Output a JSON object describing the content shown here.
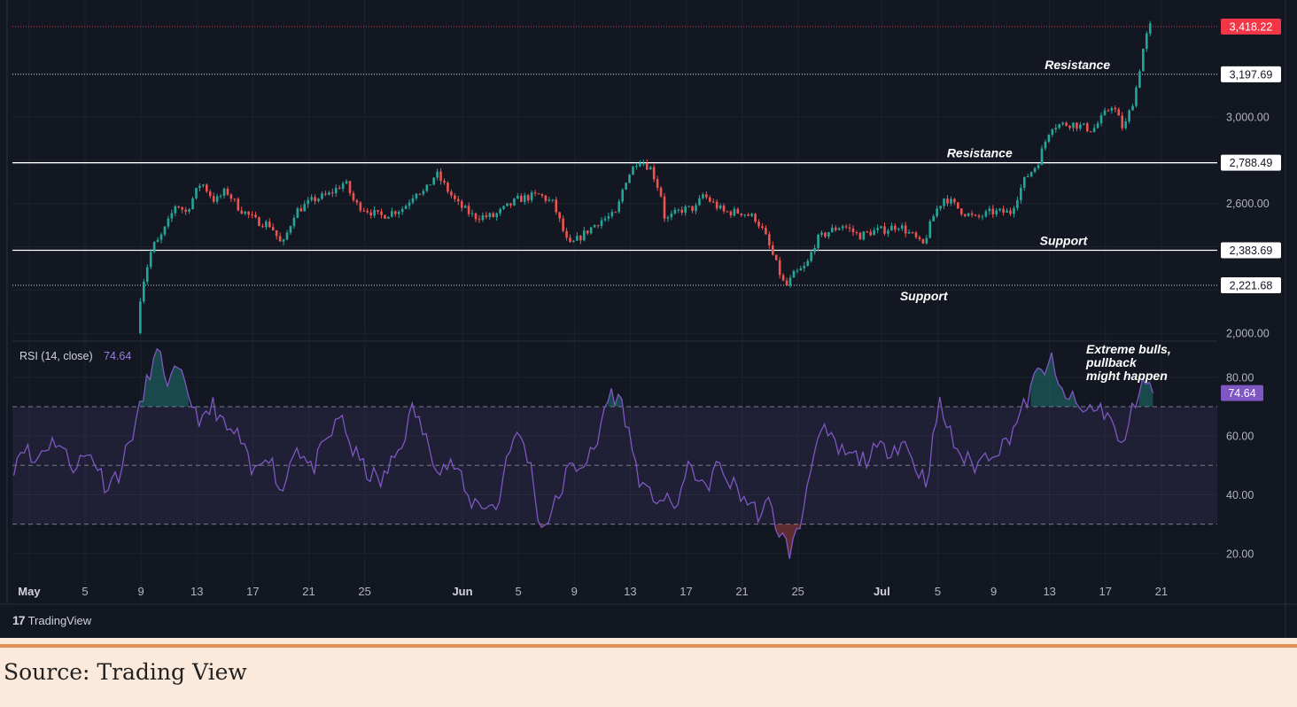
{
  "caption": "Source: Trading View",
  "brand": {
    "logo": "17",
    "name": "TradingView"
  },
  "colors": {
    "background": "#131722",
    "up": "#26a69a",
    "down": "#ef5350",
    "rsi": "#7e57c2",
    "price_tag": "#f23645",
    "rsi_tag": "#7e57c2",
    "caption_bg": "#fbeadb",
    "divider": "#e39156"
  },
  "chart_data": [
    {
      "type": "candlestick",
      "title": "",
      "x_tick_labels": [
        {
          "label": "May",
          "day": 1,
          "bold": true
        },
        {
          "label": "5",
          "day": 5
        },
        {
          "label": "9",
          "day": 9
        },
        {
          "label": "13",
          "day": 13
        },
        {
          "label": "17",
          "day": 17
        },
        {
          "label": "21",
          "day": 21
        },
        {
          "label": "25",
          "day": 25
        },
        {
          "label": "Jun",
          "day": 32,
          "bold": true
        },
        {
          "label": "5",
          "day": 36
        },
        {
          "label": "9",
          "day": 40
        },
        {
          "label": "13",
          "day": 44
        },
        {
          "label": "17",
          "day": 48
        },
        {
          "label": "21",
          "day": 52
        },
        {
          "label": "25",
          "day": 56
        },
        {
          "label": "Jul",
          "day": 62,
          "bold": true
        },
        {
          "label": "5",
          "day": 66
        },
        {
          "label": "9",
          "day": 70
        },
        {
          "label": "13",
          "day": 74
        },
        {
          "label": "17",
          "day": 78
        },
        {
          "label": "21",
          "day": 82
        }
      ],
      "y_tick_labels": [
        "3,000.00",
        "2,600.00",
        "2,000.00"
      ],
      "y_ticks": [
        3000,
        2600,
        2000
      ],
      "ylim": [
        1980,
        3480
      ],
      "xlim": [
        -0.2,
        86
      ],
      "current_price": 3418.22,
      "current_price_label": "3,418.22",
      "levels": [
        {
          "value": 3197.69,
          "label": "3,197.69",
          "style": "dotted",
          "annotation": "Resistance",
          "annotation_day": 76
        },
        {
          "value": 2788.49,
          "label": "2,788.49",
          "style": "solid",
          "annotation": "Resistance",
          "annotation_day": 69
        },
        {
          "value": 2383.69,
          "label": "2,383.69",
          "style": "solid",
          "annotation": "Support",
          "annotation_day": 75
        },
        {
          "value": 2221.68,
          "label": "2,221.68",
          "style": "dotted",
          "annotation": "Support",
          "annotation_day": 65
        }
      ],
      "close_keypoints": [
        [
          8.7,
          2000
        ],
        [
          9,
          2200
        ],
        [
          9.4,
          2300
        ],
        [
          9.8,
          2400
        ],
        [
          10.3,
          2430
        ],
        [
          11,
          2520
        ],
        [
          11.5,
          2600
        ],
        [
          12.2,
          2560
        ],
        [
          13.3,
          2700
        ],
        [
          14.3,
          2610
        ],
        [
          15.1,
          2660
        ],
        [
          16,
          2580
        ],
        [
          17.2,
          2520
        ],
        [
          18.3,
          2500
        ],
        [
          19.1,
          2400
        ],
        [
          20,
          2560
        ],
        [
          21.4,
          2620
        ],
        [
          22.4,
          2640
        ],
        [
          23.6,
          2700
        ],
        [
          24.3,
          2600
        ],
        [
          26.1,
          2540
        ],
        [
          27.8,
          2580
        ],
        [
          28.7,
          2660
        ],
        [
          29.3,
          2650
        ],
        [
          30.1,
          2740
        ],
        [
          31.6,
          2600
        ],
        [
          32.8,
          2540
        ],
        [
          34.2,
          2540
        ],
        [
          36,
          2620
        ],
        [
          37.5,
          2640
        ],
        [
          38.5,
          2600
        ],
        [
          39.6,
          2400
        ],
        [
          41.8,
          2520
        ],
        [
          43,
          2550
        ],
        [
          43.6,
          2700
        ],
        [
          44.6,
          2810
        ],
        [
          45.5,
          2760
        ],
        [
          46.2,
          2640
        ],
        [
          46.5,
          2520
        ],
        [
          47.6,
          2570
        ],
        [
          48.7,
          2580
        ],
        [
          49.2,
          2640
        ],
        [
          50.7,
          2560
        ],
        [
          52,
          2560
        ],
        [
          53,
          2530
        ],
        [
          53.6,
          2460
        ],
        [
          54.5,
          2310
        ],
        [
          55.1,
          2210
        ],
        [
          55.7,
          2270
        ],
        [
          56.6,
          2310
        ],
        [
          57.3,
          2430
        ],
        [
          58.2,
          2470
        ],
        [
          59.2,
          2500
        ],
        [
          60.4,
          2450
        ],
        [
          61.3,
          2470
        ],
        [
          62.3,
          2480
        ],
        [
          63.2,
          2500
        ],
        [
          64.4,
          2440
        ],
        [
          64.9,
          2400
        ],
        [
          65.8,
          2560
        ],
        [
          66.5,
          2630
        ],
        [
          67.6,
          2570
        ],
        [
          68.7,
          2530
        ],
        [
          69.8,
          2560
        ],
        [
          71.2,
          2560
        ],
        [
          71.8,
          2650
        ],
        [
          72.3,
          2720
        ],
        [
          73.1,
          2780
        ],
        [
          74.1,
          2960
        ],
        [
          75.6,
          2970
        ],
        [
          77.1,
          2940
        ],
        [
          78.5,
          3060
        ],
        [
          79.3,
          2940
        ],
        [
          80.1,
          3100
        ],
        [
          80.8,
          3350
        ],
        [
          81.2,
          3418.22
        ]
      ]
    },
    {
      "type": "line",
      "title": "RSI (14, close)",
      "value_label": "74.64",
      "current_value": 74.64,
      "y_tick_labels": [
        "80.00",
        "60.00",
        "40.00",
        "20.00"
      ],
      "y_ticks": [
        80,
        60,
        40,
        20
      ],
      "ylim": [
        13,
        92
      ],
      "bands": [
        70,
        50,
        30
      ],
      "annotation": "Extreme bulls,\npullback\nmight happen",
      "keypoints": [
        [
          -0.1,
          50
        ],
        [
          0.6,
          58
        ],
        [
          1.3,
          50
        ],
        [
          2,
          56
        ],
        [
          3,
          59
        ],
        [
          4,
          50
        ],
        [
          5.5,
          54
        ],
        [
          6.5,
          43
        ],
        [
          7.5,
          48
        ],
        [
          8.3,
          60
        ],
        [
          9,
          70
        ],
        [
          9.6,
          82
        ],
        [
          10.2,
          88
        ],
        [
          11,
          78
        ],
        [
          11.6,
          82
        ],
        [
          12.2,
          76
        ],
        [
          13.4,
          64
        ],
        [
          14.2,
          71
        ],
        [
          15,
          62
        ],
        [
          16,
          60
        ],
        [
          17,
          46
        ],
        [
          18,
          56
        ],
        [
          19.1,
          40
        ],
        [
          20,
          58
        ],
        [
          21.2,
          48
        ],
        [
          22.5,
          60
        ],
        [
          23.4,
          67
        ],
        [
          24,
          56
        ],
        [
          25.1,
          48
        ],
        [
          26.2,
          44
        ],
        [
          27.6,
          57
        ],
        [
          28.5,
          70
        ],
        [
          29.5,
          57
        ],
        [
          30.3,
          50
        ],
        [
          31.5,
          50
        ],
        [
          32.4,
          38
        ],
        [
          33.6,
          37
        ],
        [
          34.5,
          35
        ],
        [
          35.3,
          57
        ],
        [
          36.2,
          60
        ],
        [
          36.9,
          49
        ],
        [
          37.6,
          28
        ],
        [
          38.8,
          38
        ],
        [
          39.5,
          48
        ],
        [
          40.6,
          51
        ],
        [
          41.6,
          55
        ],
        [
          42,
          68
        ],
        [
          42.7,
          75
        ],
        [
          43.5,
          70
        ],
        [
          44.2,
          54
        ],
        [
          45,
          40
        ],
        [
          46.2,
          39
        ],
        [
          47.1,
          35
        ],
        [
          48.4,
          51
        ],
        [
          49.3,
          40
        ],
        [
          50.1,
          50
        ],
        [
          51.4,
          43
        ],
        [
          52.7,
          36
        ],
        [
          53.4,
          33
        ],
        [
          53.9,
          37
        ],
        [
          54.7,
          27
        ],
        [
          55.4,
          21
        ],
        [
          56.1,
          28
        ],
        [
          57.2,
          58
        ],
        [
          58,
          61
        ],
        [
          58.8,
          55
        ],
        [
          59.8,
          53
        ],
        [
          60.7,
          52
        ],
        [
          61.7,
          55
        ],
        [
          62.6,
          56
        ],
        [
          63.6,
          58
        ],
        [
          64.6,
          48
        ],
        [
          65.2,
          45
        ],
        [
          66.1,
          71
        ],
        [
          67.1,
          58
        ],
        [
          67.9,
          52
        ],
        [
          68.7,
          50
        ],
        [
          69.8,
          55
        ],
        [
          70.8,
          57
        ],
        [
          71.4,
          63
        ],
        [
          72.2,
          70
        ],
        [
          73,
          80
        ],
        [
          74.1,
          86
        ],
        [
          74.6,
          76
        ],
        [
          75.3,
          74
        ],
        [
          76.3,
          68
        ],
        [
          77.2,
          70
        ],
        [
          78.2,
          68
        ],
        [
          79.1,
          55
        ],
        [
          79.9,
          68
        ],
        [
          80.6,
          80
        ],
        [
          81,
          77
        ],
        [
          81.4,
          74.64
        ]
      ]
    }
  ]
}
